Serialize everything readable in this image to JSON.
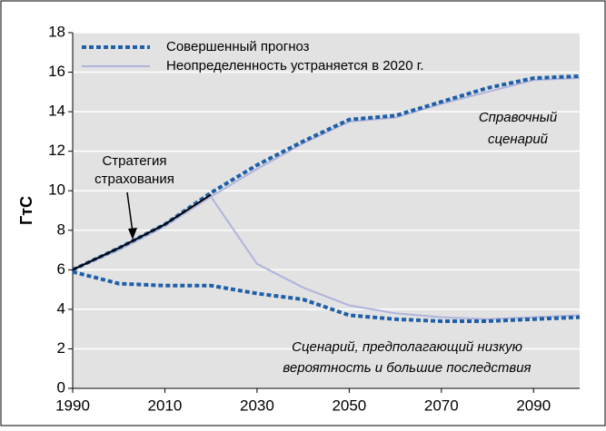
{
  "chart_data": {
    "type": "line",
    "ylabel": "ГтС",
    "x": [
      1990,
      2000,
      2010,
      2020,
      2030,
      2040,
      2050,
      2060,
      2070,
      2080,
      2090,
      2100
    ],
    "xlim": [
      1990,
      2100
    ],
    "xticks": [
      1990,
      2010,
      2030,
      2050,
      2070,
      2090
    ],
    "ylim": [
      0,
      18
    ],
    "yticks": [
      0,
      2,
      4,
      6,
      8,
      10,
      12,
      14,
      16,
      18
    ],
    "grid": true,
    "legend": "upper left",
    "series": [
      {
        "name": "Совершенный прогноз",
        "color": "#1f5fa8",
        "style": "dotted",
        "lines": [
          {
            "values": [
              6,
              7.1,
              8.3,
              9.9,
              11.3,
              12.5,
              13.6,
              13.8,
              14.5,
              15.2,
              15.7,
              15.8
            ]
          },
          {
            "values": [
              5.9,
              5.3,
              5.2,
              5.2,
              4.8,
              4.5,
              3.7,
              3.5,
              3.4,
              3.4,
              3.5,
              3.6
            ]
          }
        ]
      },
      {
        "name": "Неопределенность устраняется в 2020 г.",
        "color": "#b0b4dc",
        "style": "solid",
        "lines": [
          {
            "values": [
              6,
              7,
              8.2,
              9.7,
              11.1,
              12.4,
              13.5,
              13.7,
              14.4,
              15.0,
              15.6,
              15.7
            ]
          },
          {
            "values": [
              null,
              null,
              null,
              9.7,
              6.3,
              5.1,
              4.2,
              3.8,
              3.6,
              3.5,
              3.6,
              3.7
            ]
          }
        ]
      }
    ],
    "hedge": {
      "color": "#000000",
      "values": [
        6,
        7.1,
        8.3,
        9.8,
        null,
        null,
        null,
        null,
        null,
        null,
        null,
        null
      ]
    },
    "annotations": {
      "hedge": [
        "Стратегия",
        "страхования"
      ],
      "reference": [
        "Справочный",
        "сценарий"
      ],
      "low": [
        "Сценарий, предполагающий низкую",
        "вероятность и большие последствия"
      ]
    }
  }
}
